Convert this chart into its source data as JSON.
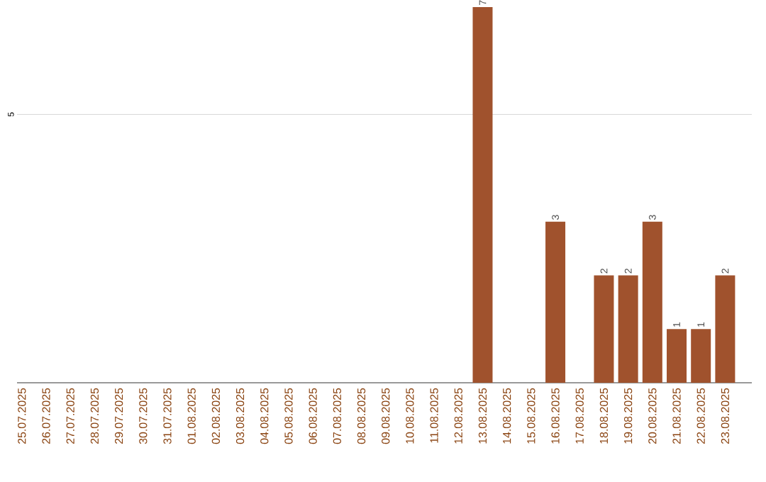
{
  "chart_data": {
    "type": "bar",
    "categories": [
      "25.07.2025",
      "26.07.2025",
      "27.07.2025",
      "28.07.2025",
      "29.07.2025",
      "30.07.2025",
      "31.07.2025",
      "01.08.2025",
      "02.08.2025",
      "03.08.2025",
      "04.08.2025",
      "05.08.2025",
      "06.08.2025",
      "07.08.2025",
      "08.08.2025",
      "09.08.2025",
      "10.08.2025",
      "11.08.2025",
      "12.08.2025",
      "13.08.2025",
      "14.08.2025",
      "15.08.2025",
      "16.08.2025",
      "17.08.2025",
      "18.08.2025",
      "19.08.2025",
      "20.08.2025",
      "21.08.2025",
      "22.08.2025",
      "23.08.2025"
    ],
    "values": [
      null,
      null,
      null,
      null,
      null,
      null,
      null,
      null,
      null,
      null,
      null,
      null,
      null,
      null,
      null,
      null,
      null,
      null,
      null,
      7,
      null,
      null,
      3,
      null,
      2,
      2,
      3,
      1,
      1,
      2
    ],
    "color": "#a0522d",
    "ref_lines": [
      {
        "axis": "y",
        "value": 5,
        "label": "5",
        "color": "#cccccc"
      }
    ],
    "data_labels": true
  }
}
